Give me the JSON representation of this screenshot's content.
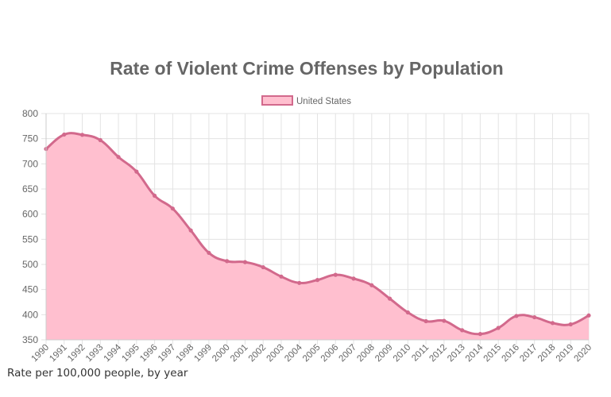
{
  "chart_data": {
    "type": "area",
    "title": "Rate of Violent Crime Offenses by Population",
    "legend": {
      "position": "top",
      "entries": [
        "United States"
      ]
    },
    "series": [
      {
        "name": "United States",
        "values": [
          729.6,
          758.2,
          757.7,
          747.1,
          713.6,
          684.5,
          636.6,
          611.0,
          567.6,
          523.0,
          506.5,
          504.5,
          494.4,
          475.8,
          463.2,
          469.0,
          479.3,
          471.8,
          458.6,
          431.9,
          404.5,
          387.1,
          387.8,
          369.1,
          361.6,
          373.7,
          397.5,
          394.9,
          383.4,
          380.8,
          398.5
        ]
      }
    ],
    "categories": [
      "1990",
      "1991",
      "1992",
      "1993",
      "1994",
      "1995",
      "1996",
      "1997",
      "1998",
      "1999",
      "2000",
      "2001",
      "2002",
      "2003",
      "2004",
      "2005",
      "2006",
      "2007",
      "2008",
      "2009",
      "2010",
      "2011",
      "2012",
      "2013",
      "2014",
      "2015",
      "2016",
      "2017",
      "2018",
      "2019",
      "2020"
    ],
    "ylim": [
      350,
      800
    ],
    "yticks": [
      350,
      400,
      450,
      500,
      550,
      600,
      650,
      700,
      750,
      800
    ],
    "grid": true,
    "colors": {
      "fill": "#ffbfcf",
      "line": "#d2698c",
      "grid": "#e3e3e3",
      "text": "#666666"
    }
  },
  "footer": "Rate per 100,000 people, by year"
}
